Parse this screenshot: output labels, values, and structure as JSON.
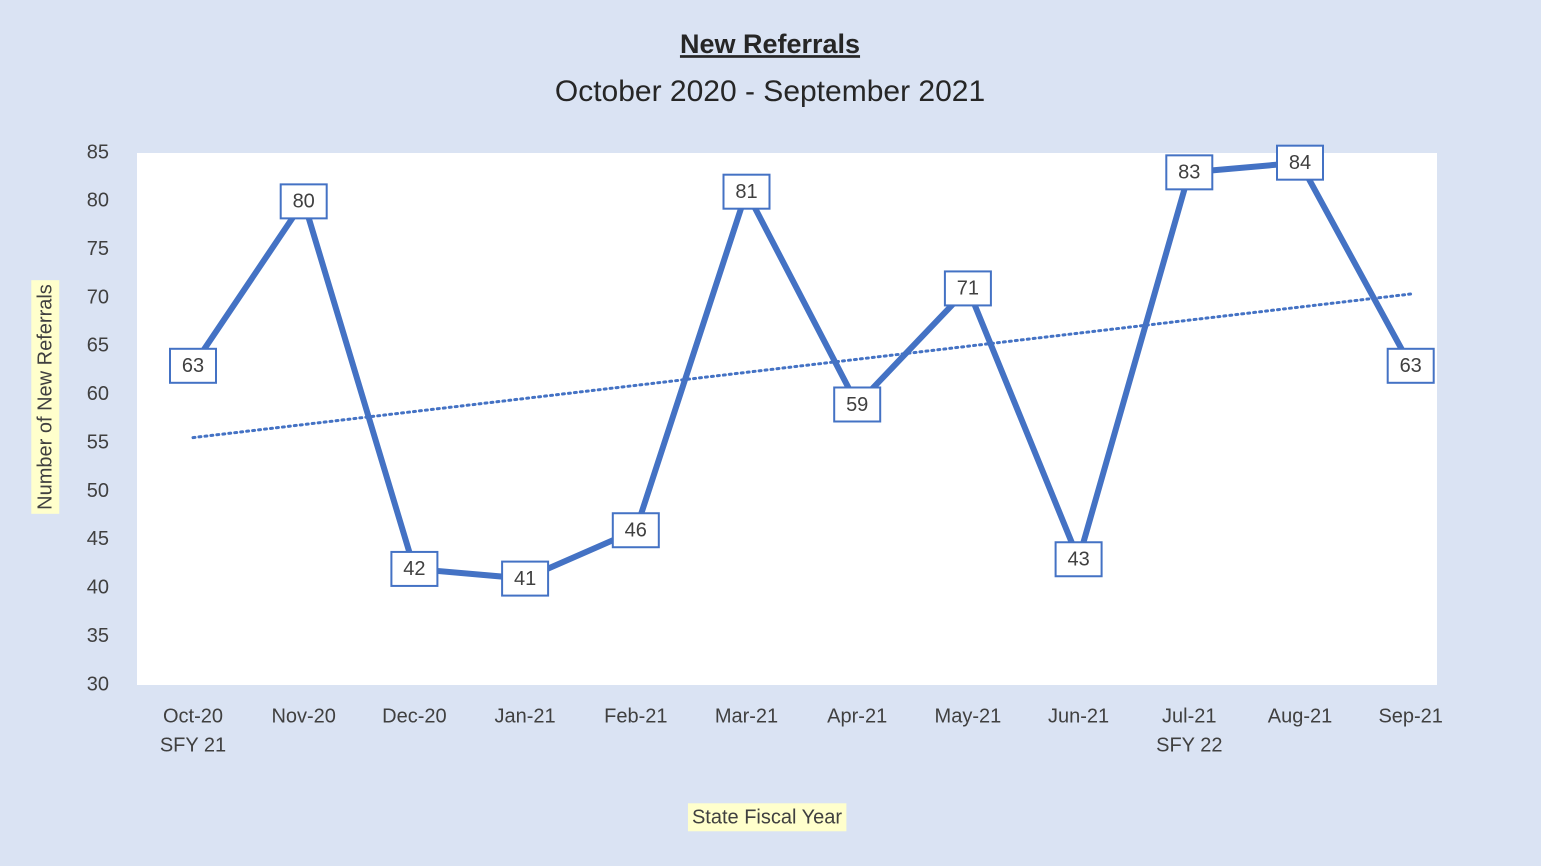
{
  "chart_data": {
    "type": "line",
    "title": "New Referrals",
    "subtitle": "October 2020 - September 2021",
    "y_label": "Number of New Referrals",
    "x_label": "State Fiscal Year",
    "categories": [
      "Oct-20",
      "Nov-20",
      "Dec-20",
      "Jan-21",
      "Feb-21",
      "Mar-21",
      "Apr-21",
      "May-21",
      "Jun-21",
      "Jul-21",
      "Aug-21",
      "Sep-21"
    ],
    "category_sublabels": [
      "SFY 21",
      null,
      null,
      null,
      null,
      null,
      null,
      null,
      null,
      "SFY 22",
      null,
      null
    ],
    "series": [
      {
        "name": "New Referrals",
        "color": "#4472c4",
        "values": [
          63,
          80,
          42,
          41,
          46,
          81,
          59,
          71,
          43,
          83,
          84,
          63
        ]
      }
    ],
    "trendline": "linear",
    "ylim": [
      30,
      85
    ],
    "yticks": [
      30,
      35,
      40,
      45,
      50,
      55,
      60,
      65,
      70,
      75,
      80,
      85
    ],
    "data_labels": true
  }
}
